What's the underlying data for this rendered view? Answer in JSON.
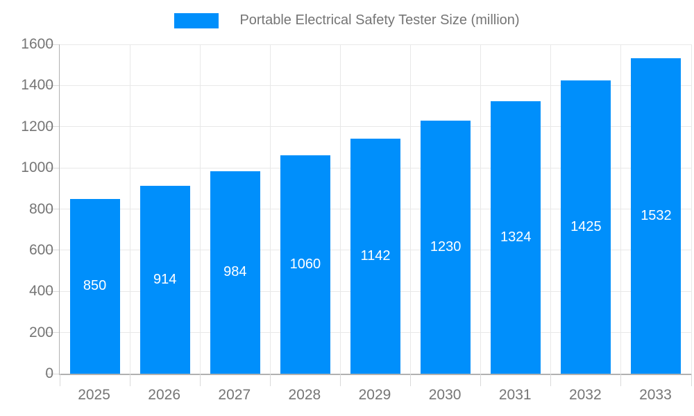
{
  "chart_data": {
    "type": "bar",
    "title": "Portable Electrical Safety Tester Size (million)",
    "categories": [
      "2025",
      "2026",
      "2027",
      "2028",
      "2029",
      "2030",
      "2031",
      "2032",
      "2033"
    ],
    "values": [
      850,
      914,
      984,
      1060,
      1142,
      1230,
      1324,
      1425,
      1532
    ],
    "series": [
      {
        "name": "Portable Electrical Safety Tester Size (million)",
        "values": [
          850,
          914,
          984,
          1060,
          1142,
          1230,
          1324,
          1425,
          1532
        ]
      }
    ],
    "xlabel": "",
    "ylabel": "",
    "ylim": [
      0,
      1600
    ],
    "yticks": [
      0,
      200,
      400,
      600,
      800,
      1000,
      1200,
      1400,
      1600
    ],
    "grid": true,
    "legend_position": "top",
    "value_labels": "inside-center",
    "colors": {
      "bar": "#008FFB",
      "value_label": "#ffffff",
      "axis_text": "#757575",
      "legend_text": "#757575",
      "gridline": "#e8e8e8",
      "tick": "#d9d9d9",
      "axis_line": "#b1b1b1",
      "background": "#ffffff"
    }
  }
}
